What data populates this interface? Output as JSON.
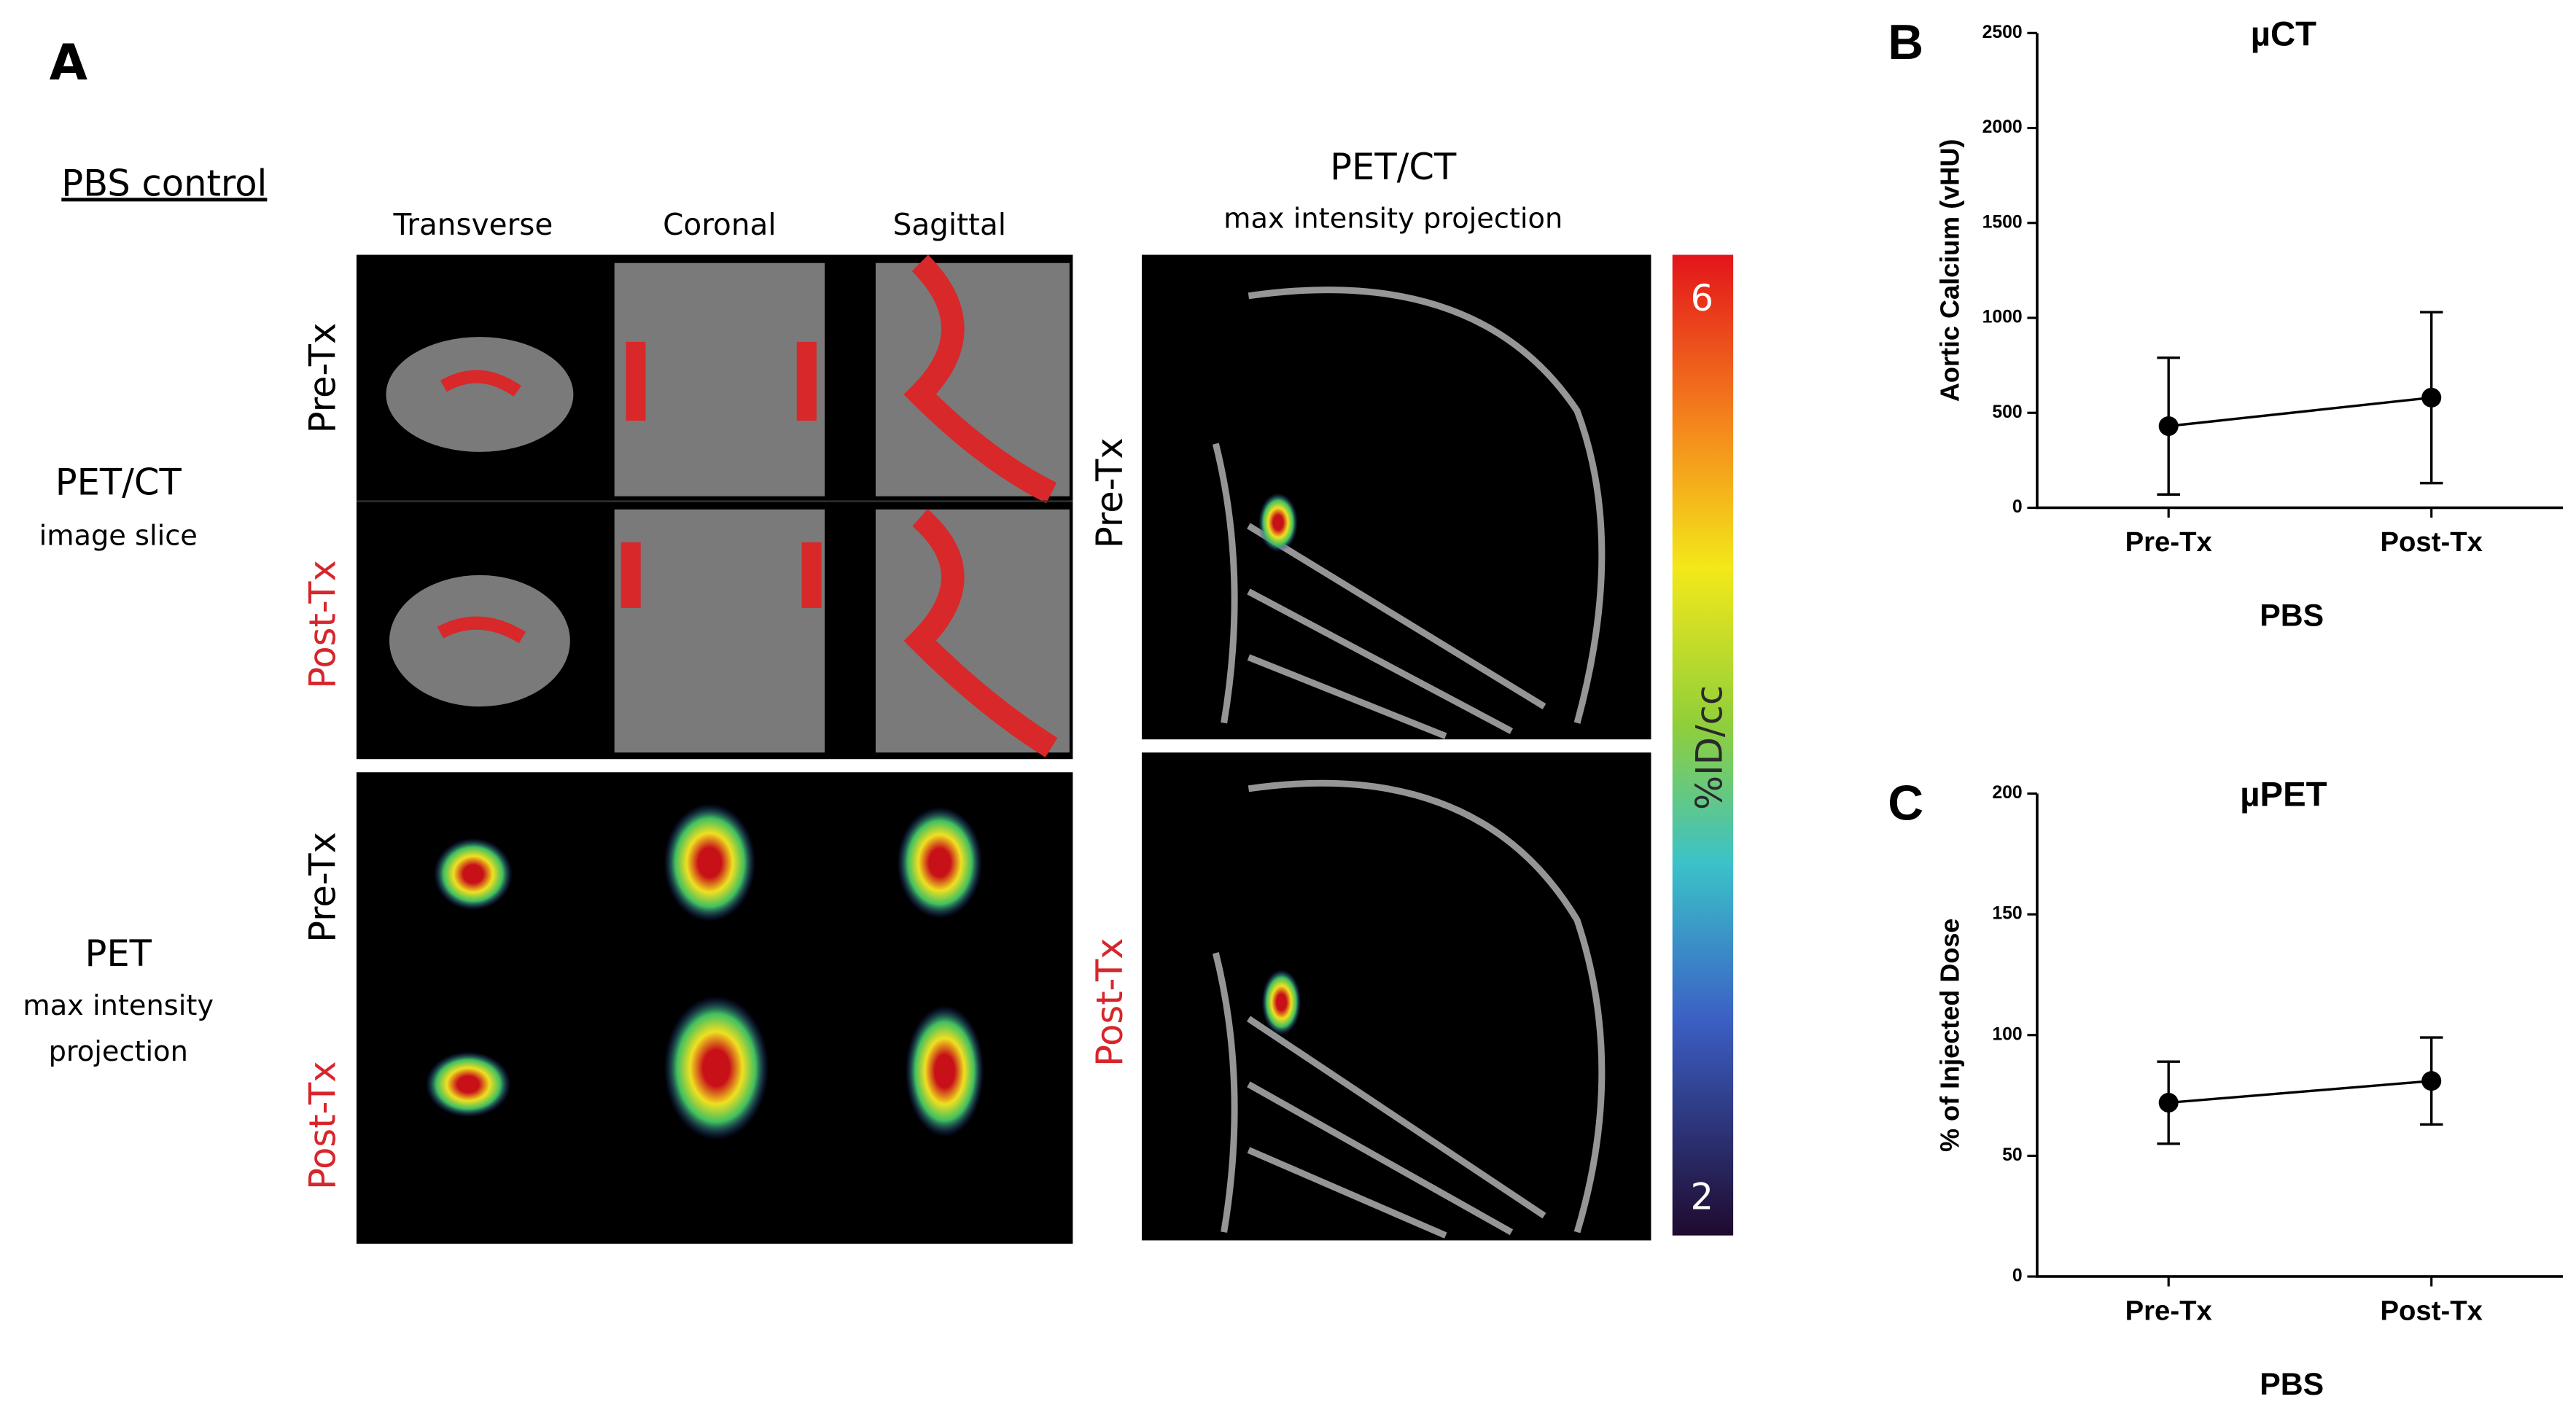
{
  "panel_a": {
    "panel_label": "A",
    "group_label": "PBS control",
    "columns": [
      "Transverse",
      "Coronal",
      "Sagittal"
    ],
    "slice_label": "PET/CT",
    "slice_sublabel": "image slice",
    "pet_label": "PET",
    "pet_sublabel_1": "max intensity",
    "pet_sublabel_2": "projection",
    "row_labels": [
      "Pre-Tx",
      "Post-Tx",
      "Pre-Tx",
      "Post-Tx"
    ],
    "mip_title": "PET/CT",
    "mip_subtitle": "max intensity projection",
    "mip_row_labels": [
      "Pre-Tx",
      "Post-Tx"
    ],
    "colorbar_max": "6",
    "colorbar_min": "2",
    "colorbar_unit": "%ID/cc"
  },
  "chart_data": [
    {
      "type": "line",
      "panel_label": "B",
      "title": "µCT",
      "x_label": "PBS",
      "y_label": "Aortic Calcium (vHU)",
      "categories": [
        "Pre-Tx",
        "Post-Tx"
      ],
      "values": [
        430,
        580
      ],
      "errors": [
        360,
        450
      ],
      "color": "#000000",
      "ylim": [
        0,
        2500
      ],
      "yticks": [
        0,
        500,
        1000,
        1500,
        2000,
        2500
      ]
    },
    {
      "type": "line",
      "panel_label": "C",
      "title": "µPET",
      "x_label": "PBS",
      "y_label": "% of Injected Dose",
      "categories": [
        "Pre-Tx",
        "Post-Tx"
      ],
      "values": [
        72,
        81
      ],
      "errors": [
        17,
        18
      ],
      "color": "#000000",
      "ylim": [
        0,
        200
      ],
      "yticks": [
        0,
        50,
        100,
        150,
        200
      ]
    }
  ]
}
